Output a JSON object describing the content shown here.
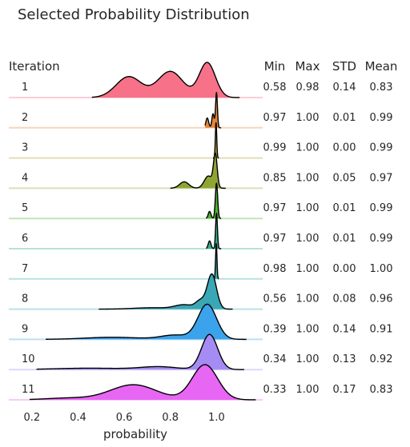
{
  "chart_data": {
    "type": "ridgeline",
    "title": "Selected Probability Distribution",
    "xlabel": "probability",
    "xlim": [
      0.1,
      1.2
    ],
    "xticks": [
      "0.2",
      "0.4",
      "0.6",
      "0.8",
      "1.0"
    ],
    "xtick_values": [
      0.2,
      0.4,
      0.6,
      0.8,
      1.0
    ],
    "row_header": "Iteration",
    "stat_headers": [
      "Min",
      "Max",
      "STD",
      "Mean"
    ],
    "grid": false,
    "series": [
      {
        "name": "1",
        "color": "#f77189",
        "kde_range": [
          0.46,
          1.1
        ],
        "peaks": [
          [
            0.62,
            0.055,
            0.6
          ],
          [
            0.8,
            0.055,
            0.75
          ],
          [
            0.96,
            0.035,
            1.0
          ]
        ],
        "stats": [
          "0.58",
          "0.98",
          "0.14",
          "0.83"
        ]
      },
      {
        "name": "2",
        "color": "#e4863a",
        "kde_range": [
          0.95,
          1.02
        ],
        "peaks": [
          [
            0.96,
            0.006,
            0.28
          ],
          [
            0.985,
            0.005,
            0.4
          ],
          [
            1.0,
            0.004,
            1.0
          ]
        ],
        "stats": [
          "0.97",
          "1.00",
          "0.01",
          "0.99"
        ]
      },
      {
        "name": "3",
        "color": "#b49c33",
        "kde_range": [
          0.985,
          1.01
        ],
        "peaks": [
          [
            0.998,
            0.003,
            1.0
          ]
        ],
        "stats": [
          "0.99",
          "1.00",
          "0.00",
          "0.99"
        ]
      },
      {
        "name": "4",
        "color": "#8fa532",
        "kde_range": [
          0.8,
          1.04
        ],
        "peaks": [
          [
            0.86,
            0.02,
            0.2
          ],
          [
            0.965,
            0.018,
            0.38
          ],
          [
            0.995,
            0.008,
            1.0
          ]
        ],
        "stats": [
          "0.85",
          "1.00",
          "0.05",
          "0.97"
        ]
      },
      {
        "name": "5",
        "color": "#50b131",
        "kde_range": [
          0.955,
          1.02
        ],
        "peaks": [
          [
            0.97,
            0.006,
            0.2
          ],
          [
            1.0,
            0.005,
            1.0
          ]
        ],
        "stats": [
          "0.97",
          "1.00",
          "0.01",
          "0.99"
        ]
      },
      {
        "name": "6",
        "color": "#35ad8e",
        "kde_range": [
          0.955,
          1.02
        ],
        "peaks": [
          [
            0.97,
            0.006,
            0.22
          ],
          [
            1.0,
            0.004,
            1.0
          ]
        ],
        "stats": [
          "0.97",
          "1.00",
          "0.01",
          "0.99"
        ]
      },
      {
        "name": "7",
        "color": "#37aaa3",
        "kde_range": [
          0.98,
          1.01
        ],
        "peaks": [
          [
            0.999,
            0.003,
            1.0
          ]
        ],
        "stats": [
          "0.98",
          "1.00",
          "0.00",
          "1.00"
        ]
      },
      {
        "name": "8",
        "color": "#39a7b6",
        "kde_range": [
          0.49,
          1.07
        ],
        "peaks": [
          [
            0.72,
            0.08,
            0.04
          ],
          [
            0.86,
            0.04,
            0.12
          ],
          [
            0.93,
            0.02,
            0.22
          ],
          [
            0.98,
            0.02,
            1.0
          ]
        ],
        "stats": [
          "0.56",
          "1.00",
          "0.08",
          "0.96"
        ]
      },
      {
        "name": "9",
        "color": "#3ba3ec",
        "kde_range": [
          0.26,
          1.13
        ],
        "peaks": [
          [
            0.55,
            0.12,
            0.06
          ],
          [
            0.82,
            0.06,
            0.12
          ],
          [
            0.96,
            0.04,
            1.0
          ]
        ],
        "stats": [
          "0.39",
          "1.00",
          "0.14",
          "0.91"
        ]
      },
      {
        "name": "10",
        "color": "#a48cf4",
        "kde_range": [
          0.22,
          1.12
        ],
        "peaks": [
          [
            0.45,
            0.15,
            0.04
          ],
          [
            0.75,
            0.08,
            0.08
          ],
          [
            0.97,
            0.035,
            1.0
          ]
        ],
        "stats": [
          "0.34",
          "1.00",
          "0.13",
          "0.92"
        ]
      },
      {
        "name": "11",
        "color": "#e866f4",
        "kde_range": [
          0.19,
          1.17
        ],
        "peaks": [
          [
            0.36,
            0.1,
            0.05
          ],
          [
            0.64,
            0.1,
            0.43
          ],
          [
            0.95,
            0.055,
            1.0
          ]
        ],
        "stats": [
          "0.33",
          "1.00",
          "0.17",
          "0.83"
        ]
      }
    ]
  }
}
